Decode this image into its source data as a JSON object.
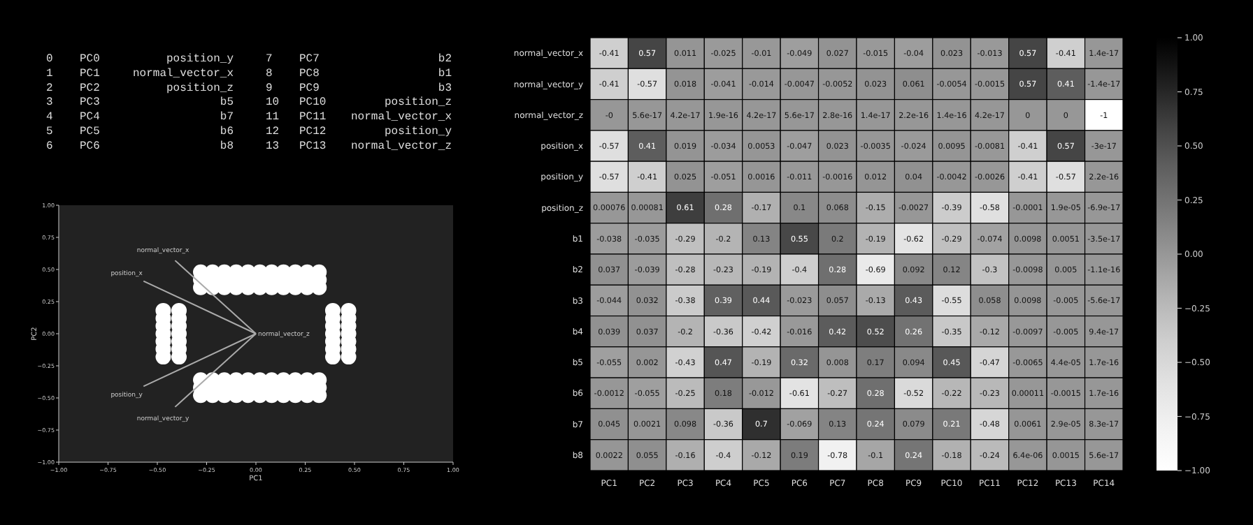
{
  "chart_data": [
    {
      "type": "other",
      "annotations": [
        "0 PC0 position_y",
        "1 PC1 normal_vector_x",
        "2 PC2 position_z",
        "3 PC3 b5",
        "4 PC4 b7",
        "5 PC5 b6",
        "6 PC6 b8",
        "7 PC7 b2",
        "8 PC8 b1",
        "9 PC9 b3",
        "10 PC10 position_z",
        "11 PC11 normal_vector_x",
        "12 PC12 position_y",
        "13 PC13 normal_vector_z"
      ]
    },
    {
      "type": "scatter",
      "xlabel": "PC1",
      "ylabel": "PC2",
      "xlim": [
        -1,
        1
      ],
      "ylim": [
        -1,
        1
      ],
      "marker": "circle",
      "xticks": [
        {
          "value": -1,
          "label": "−1.00"
        },
        {
          "value": -0.75,
          "label": "−0.75"
        },
        {
          "value": -0.5,
          "label": "−0.50"
        },
        {
          "value": -0.25,
          "label": "−0.25"
        },
        {
          "value": 0,
          "label": "0.00"
        },
        {
          "value": 0.25,
          "label": "0.25"
        },
        {
          "value": 0.5,
          "label": "0.50"
        },
        {
          "value": 0.75,
          "label": "0.75"
        },
        {
          "value": 1,
          "label": "1.00"
        }
      ],
      "yticks": [
        {
          "value": -1,
          "label": "−1.00"
        },
        {
          "value": -0.75,
          "label": "−0.75"
        },
        {
          "value": -0.5,
          "label": "−0.50"
        },
        {
          "value": -0.25,
          "label": "−0.25"
        },
        {
          "value": 0,
          "label": "0.00"
        },
        {
          "value": 0.25,
          "label": "0.25"
        },
        {
          "value": 0.5,
          "label": "0.50"
        },
        {
          "value": 0.75,
          "label": "0.75"
        },
        {
          "value": 1,
          "label": "1.00"
        }
      ],
      "series": [
        {
          "type": "scatter",
          "color": "#ffffff",
          "x": [
            -0.28,
            -0.22,
            -0.16,
            -0.1,
            -0.04,
            0.02,
            0.08,
            0.14,
            0.2,
            0.26,
            0.32,
            -0.28,
            -0.22,
            -0.16,
            -0.1,
            -0.04,
            0.02,
            0.08,
            0.14,
            0.2,
            0.26,
            0.32,
            -0.28,
            -0.22,
            -0.16,
            -0.1,
            -0.04,
            0.02,
            0.08,
            0.14,
            0.2,
            0.26,
            0.32,
            -0.28,
            -0.22,
            -0.16,
            -0.1,
            -0.04,
            0.02,
            0.08,
            0.14,
            0.2,
            0.26,
            0.32,
            -0.28,
            -0.22,
            -0.16,
            -0.1,
            -0.04,
            0.02,
            0.08,
            0.14,
            0.2,
            0.26,
            0.32,
            -0.28,
            -0.22,
            -0.16,
            -0.1,
            -0.04,
            0.02,
            0.08,
            0.14,
            0.2,
            0.26,
            0.32,
            -0.47,
            -0.47,
            -0.47,
            -0.47,
            -0.47,
            -0.47,
            -0.47,
            -0.39,
            -0.39,
            -0.39,
            -0.39,
            -0.39,
            -0.39,
            -0.39,
            0.39,
            0.39,
            0.39,
            0.39,
            0.39,
            0.39,
            0.39,
            0.47,
            0.47,
            0.47,
            0.47,
            0.47,
            0.47,
            0.47
          ],
          "values": [
            0.36,
            0.36,
            0.36,
            0.36,
            0.36,
            0.36,
            0.36,
            0.36,
            0.36,
            0.36,
            0.36,
            0.42,
            0.42,
            0.42,
            0.42,
            0.42,
            0.42,
            0.42,
            0.42,
            0.42,
            0.42,
            0.42,
            0.48,
            0.48,
            0.48,
            0.48,
            0.48,
            0.48,
            0.48,
            0.48,
            0.48,
            0.48,
            0.48,
            -0.36,
            -0.36,
            -0.36,
            -0.36,
            -0.36,
            -0.36,
            -0.36,
            -0.36,
            -0.36,
            -0.36,
            -0.36,
            -0.42,
            -0.42,
            -0.42,
            -0.42,
            -0.42,
            -0.42,
            -0.42,
            -0.42,
            -0.42,
            -0.42,
            -0.42,
            -0.48,
            -0.48,
            -0.48,
            -0.48,
            -0.48,
            -0.48,
            -0.48,
            -0.48,
            -0.48,
            -0.48,
            -0.48,
            -0.18,
            -0.12,
            -0.06,
            0,
            0.06,
            0.12,
            0.18,
            -0.18,
            -0.12,
            -0.06,
            0,
            0.06,
            0.12,
            0.18,
            -0.18,
            -0.12,
            -0.06,
            0,
            0.06,
            0.12,
            0.18,
            -0.18,
            -0.12,
            -0.06,
            0,
            0.06,
            0.12,
            0.18
          ]
        },
        {
          "type": "line",
          "name": "normal_vector_x",
          "color": "#aaaaaa",
          "marker": "none",
          "x": [
            0,
            -0.41
          ],
          "values": [
            0,
            0.57
          ]
        },
        {
          "type": "line",
          "name": "normal_vector_y",
          "color": "#aaaaaa",
          "marker": "none",
          "x": [
            0,
            -0.41
          ],
          "values": [
            0,
            -0.57
          ]
        },
        {
          "type": "line",
          "name": "position_x",
          "color": "#aaaaaa",
          "marker": "none",
          "x": [
            0,
            -0.57
          ],
          "values": [
            0,
            0.41
          ]
        },
        {
          "type": "line",
          "name": "position_y",
          "color": "#aaaaaa",
          "marker": "none",
          "x": [
            0,
            -0.57
          ],
          "values": [
            0,
            -0.41
          ]
        }
      ],
      "annotations": [
        {
          "text": "normal_vector_z",
          "x": 0,
          "y": 0
        }
      ]
    },
    {
      "type": "heatmap",
      "categories": [
        "PC1",
        "PC2",
        "PC3",
        "PC4",
        "PC5",
        "PC6",
        "PC7",
        "PC8",
        "PC9",
        "PC10",
        "PC11",
        "PC12",
        "PC13",
        "PC14"
      ],
      "y_categories": [
        "normal_vector_x",
        "normal_vector_y",
        "normal_vector_z",
        "position_x",
        "position_y",
        "position_z",
        "b1",
        "b2",
        "b3",
        "b4",
        "b5",
        "b6",
        "b7",
        "b8"
      ],
      "clim": [
        -1,
        1
      ],
      "cticks": [
        {
          "value": -1,
          "label": "−1.00"
        },
        {
          "value": -0.75,
          "label": "−0.75"
        },
        {
          "value": -0.5,
          "label": "−0.50"
        },
        {
          "value": -0.25,
          "label": "−0.25"
        },
        {
          "value": 0,
          "label": "0.00"
        },
        {
          "value": 0.25,
          "label": "0.25"
        },
        {
          "value": 0.5,
          "label": "0.50"
        },
        {
          "value": 0.75,
          "label": "0.75"
        },
        {
          "value": 1,
          "label": "1.00"
        }
      ],
      "cells": [
        [
          -0.41,
          0.57,
          0.011,
          -0.025,
          -0.01,
          -0.049,
          0.027,
          -0.015,
          -0.04,
          0.023,
          -0.013,
          0.57,
          -0.41,
          1.4e-17
        ],
        [
          -0.41,
          -0.57,
          0.018,
          -0.041,
          -0.014,
          -0.0047,
          -0.0052,
          0.023,
          0.061,
          -0.0054,
          -0.0015,
          0.57,
          0.41,
          -1.4e-17
        ],
        [
          0,
          5.6e-17,
          4.2e-17,
          1.9e-16,
          4.2e-17,
          5.6e-17,
          2.8e-16,
          1.4e-17,
          2.2e-16,
          1.4e-16,
          4.2e-17,
          0,
          0,
          -1
        ],
        [
          -0.57,
          0.41,
          0.019,
          -0.034,
          0.0053,
          -0.047,
          0.023,
          -0.0035,
          -0.024,
          0.0095,
          -0.0081,
          -0.41,
          0.57,
          -3e-17
        ],
        [
          -0.57,
          -0.41,
          0.025,
          -0.051,
          0.0016,
          -0.011,
          -0.0016,
          0.012,
          0.04,
          -0.0042,
          -0.0026,
          -0.41,
          -0.57,
          2.2e-16
        ],
        [
          0.00076,
          0.00081,
          0.61,
          0.28,
          -0.17,
          0.1,
          0.068,
          -0.15,
          -0.0027,
          -0.39,
          -0.58,
          -0.0001,
          1.9e-05,
          -6.9e-17
        ],
        [
          -0.038,
          -0.035,
          -0.29,
          -0.2,
          0.13,
          0.55,
          0.2,
          -0.19,
          -0.62,
          -0.29,
          -0.074,
          0.0098,
          0.0051,
          -3.5e-17
        ],
        [
          0.037,
          -0.039,
          -0.28,
          -0.23,
          -0.19,
          -0.4,
          0.28,
          -0.69,
          0.092,
          0.12,
          -0.3,
          -0.0098,
          0.005,
          -1.1e-16
        ],
        [
          -0.044,
          0.032,
          -0.38,
          0.39,
          0.44,
          -0.023,
          0.057,
          -0.13,
          0.43,
          -0.55,
          0.058,
          0.0098,
          -0.005,
          -5.6e-17
        ],
        [
          0.039,
          0.037,
          -0.2,
          -0.36,
          -0.42,
          -0.016,
          0.42,
          0.52,
          0.26,
          -0.35,
          -0.12,
          -0.0097,
          -0.005,
          9.4e-17
        ],
        [
          -0.055,
          0.002,
          -0.43,
          0.47,
          -0.19,
          0.32,
          0.008,
          0.17,
          0.094,
          0.45,
          -0.47,
          -0.0065,
          4.4e-05,
          1.7e-16
        ],
        [
          -0.0012,
          -0.055,
          -0.25,
          0.18,
          -0.012,
          -0.61,
          -0.27,
          0.28,
          -0.52,
          -0.22,
          -0.23,
          0.00011,
          -0.0015,
          1.7e-16
        ],
        [
          0.045,
          0.0021,
          0.098,
          -0.36,
          0.7,
          -0.069,
          0.13,
          0.24,
          0.079,
          0.21,
          -0.48,
          0.0061,
          2.9e-05,
          8.3e-17
        ],
        [
          0.0022,
          0.055,
          -0.16,
          -0.4,
          -0.12,
          0.19,
          -0.78,
          -0.1,
          0.24,
          -0.18,
          -0.24,
          6.4e-06,
          0.0015,
          5.6e-17
        ]
      ],
      "cell_labels": [
        [
          "-0.41",
          "0.57",
          "0.011",
          "-0.025",
          "-0.01",
          "-0.049",
          "0.027",
          "-0.015",
          "-0.04",
          "0.023",
          "-0.013",
          "0.57",
          "-0.41",
          "1.4e-17"
        ],
        [
          "-0.41",
          "-0.57",
          "0.018",
          "-0.041",
          "-0.014",
          "-0.0047",
          "-0.0052",
          "0.023",
          "0.061",
          "-0.0054",
          "-0.0015",
          "0.57",
          "0.41",
          "-1.4e-17"
        ],
        [
          "-0",
          "5.6e-17",
          "4.2e-17",
          "1.9e-16",
          "4.2e-17",
          "5.6e-17",
          "2.8e-16",
          "1.4e-17",
          "2.2e-16",
          "1.4e-16",
          "4.2e-17",
          "0",
          "0",
          "-1"
        ],
        [
          "-0.57",
          "0.41",
          "0.019",
          "-0.034",
          "0.0053",
          "-0.047",
          "0.023",
          "-0.0035",
          "-0.024",
          "0.0095",
          "-0.0081",
          "-0.41",
          "0.57",
          "-3e-17"
        ],
        [
          "-0.57",
          "-0.41",
          "0.025",
          "-0.051",
          "0.0016",
          "-0.011",
          "-0.0016",
          "0.012",
          "0.04",
          "-0.0042",
          "-0.0026",
          "-0.41",
          "-0.57",
          "2.2e-16"
        ],
        [
          "0.00076",
          "0.00081",
          "0.61",
          "0.28",
          "-0.17",
          "0.1",
          "0.068",
          "-0.15",
          "-0.0027",
          "-0.39",
          "-0.58",
          "-0.0001",
          "1.9e-05",
          "-6.9e-17"
        ],
        [
          "-0.038",
          "-0.035",
          "-0.29",
          "-0.2",
          "0.13",
          "0.55",
          "0.2",
          "-0.19",
          "-0.62",
          "-0.29",
          "-0.074",
          "0.0098",
          "0.0051",
          "-3.5e-17"
        ],
        [
          "0.037",
          "-0.039",
          "-0.28",
          "-0.23",
          "-0.19",
          "-0.4",
          "0.28",
          "-0.69",
          "0.092",
          "0.12",
          "-0.3",
          "-0.0098",
          "0.005",
          "-1.1e-16"
        ],
        [
          "-0.044",
          "0.032",
          "-0.38",
          "0.39",
          "0.44",
          "-0.023",
          "0.057",
          "-0.13",
          "0.43",
          "-0.55",
          "0.058",
          "0.0098",
          "-0.005",
          "-5.6e-17"
        ],
        [
          "0.039",
          "0.037",
          "-0.2",
          "-0.36",
          "-0.42",
          "-0.016",
          "0.42",
          "0.52",
          "0.26",
          "-0.35",
          "-0.12",
          "-0.0097",
          "-0.005",
          "9.4e-17"
        ],
        [
          "-0.055",
          "0.002",
          "-0.43",
          "0.47",
          "-0.19",
          "0.32",
          "0.008",
          "0.17",
          "0.094",
          "0.45",
          "-0.47",
          "-0.0065",
          "4.4e-05",
          "1.7e-16"
        ],
        [
          "-0.0012",
          "-0.055",
          "-0.25",
          "0.18",
          "-0.012",
          "-0.61",
          "-0.27",
          "0.28",
          "-0.52",
          "-0.22",
          "-0.23",
          "0.00011",
          "-0.0015",
          "1.7e-16"
        ],
        [
          "0.045",
          "0.0021",
          "0.098",
          "-0.36",
          "0.7",
          "-0.069",
          "0.13",
          "0.24",
          "0.079",
          "0.21",
          "-0.48",
          "0.0061",
          "2.9e-05",
          "8.3e-17"
        ],
        [
          "0.0022",
          "0.055",
          "-0.16",
          "-0.4",
          "-0.12",
          "0.19",
          "-0.78",
          "-0.1",
          "0.24",
          "-0.18",
          "-0.24",
          "6.4e-06",
          "0.0015",
          "5.6e-17"
        ]
      ]
    }
  ]
}
